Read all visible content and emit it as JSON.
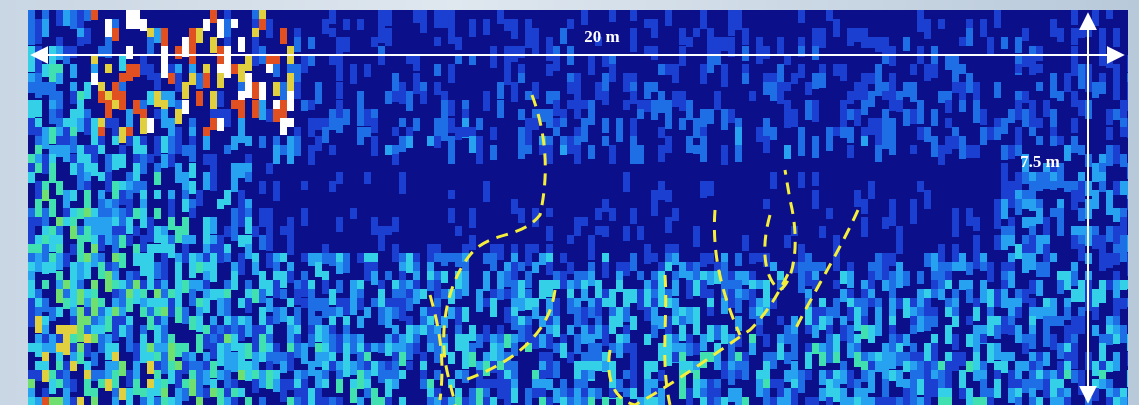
{
  "labels": {
    "width": "20 m",
    "height": "7.5 m"
  }
}
